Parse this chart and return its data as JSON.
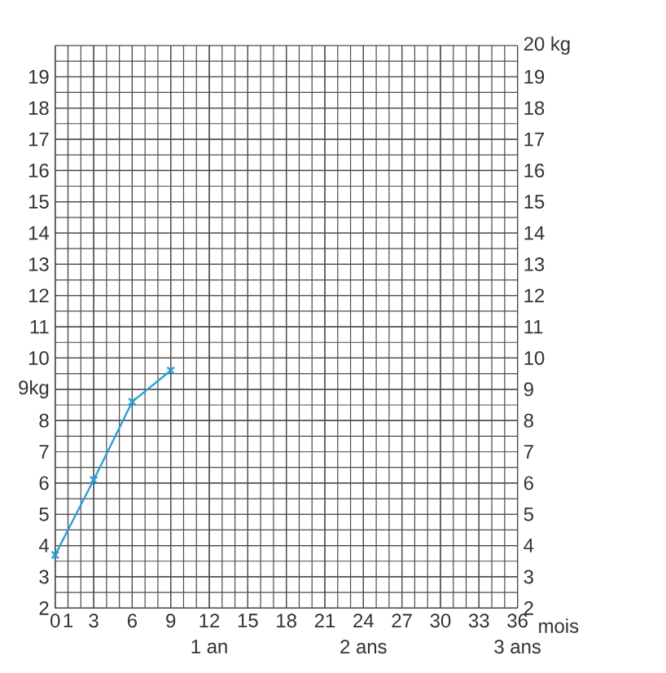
{
  "chart_data": {
    "type": "line",
    "xlabel": "mois",
    "x": [
      0,
      3,
      6,
      9
    ],
    "series": [
      {
        "color": "#2a9fd8",
        "values": [
          3.7,
          6.1,
          8.6,
          9.6
        ]
      }
    ],
    "marker": "cross",
    "line_style": "solid",
    "grid": true,
    "xlim": [
      0,
      36
    ],
    "xticks": [
      0,
      1,
      3,
      6,
      9,
      12,
      15,
      18,
      21,
      24,
      27,
      30,
      33,
      36
    ],
    "x2lim": [
      0,
      3
    ],
    "x2ticks": [
      {
        "value": 1,
        "label": "1 an"
      },
      {
        "value": 2,
        "label": "2 ans"
      },
      {
        "value": 3,
        "label": "3 ans"
      }
    ],
    "ylim": [
      2,
      20
    ],
    "yticks": [
      2,
      3,
      4,
      5,
      6,
      7,
      8,
      {
        "value": 9,
        "label": "9kg"
      },
      10,
      11,
      12,
      13,
      14,
      15,
      16,
      17,
      18,
      19
    ],
    "y2lim": [
      2,
      20
    ],
    "y2ticks": [
      2,
      3,
      4,
      5,
      6,
      7,
      8,
      9,
      10,
      11,
      12,
      13,
      14,
      15,
      16,
      17,
      18,
      19,
      {
        "value": 20,
        "label": "20 kg"
      }
    ]
  }
}
